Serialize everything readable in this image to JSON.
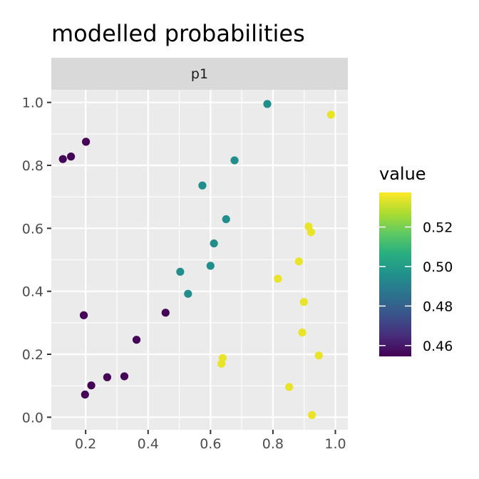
{
  "chart_data": {
    "type": "scatter",
    "title": "modelled probabilities",
    "facet_label": "p1",
    "xlabel": "",
    "ylabel": "",
    "xlim": [
      0.09,
      1.04
    ],
    "ylim": [
      -0.04,
      1.04
    ],
    "x_ticks": [
      0.2,
      0.4,
      0.6,
      0.8,
      1.0
    ],
    "x_tick_labels": [
      "0.2",
      "0.4",
      "0.6",
      "0.8",
      "1.0"
    ],
    "y_ticks": [
      0.0,
      0.2,
      0.4,
      0.6,
      0.8,
      1.0
    ],
    "y_tick_labels": [
      "0.0",
      "0.2",
      "0.4",
      "0.6",
      "0.8",
      "1.0"
    ],
    "grid": true,
    "legend": {
      "title": "value",
      "placement": "right",
      "range": [
        0.4545,
        0.5375
      ],
      "ticks": [
        0.46,
        0.48,
        0.5,
        0.52
      ],
      "tick_labels": [
        "0.46",
        "0.48",
        "0.50",
        "0.52"
      ],
      "colormap": "viridis"
    },
    "points": [
      {
        "x": 0.782,
        "y": 0.995,
        "value": 0.495
      },
      {
        "x": 0.986,
        "y": 0.961,
        "value": 0.535
      },
      {
        "x": 0.201,
        "y": 0.875,
        "value": 0.455
      },
      {
        "x": 0.153,
        "y": 0.828,
        "value": 0.455
      },
      {
        "x": 0.127,
        "y": 0.82,
        "value": 0.455
      },
      {
        "x": 0.677,
        "y": 0.816,
        "value": 0.495
      },
      {
        "x": 0.574,
        "y": 0.736,
        "value": 0.495
      },
      {
        "x": 0.65,
        "y": 0.629,
        "value": 0.495
      },
      {
        "x": 0.914,
        "y": 0.606,
        "value": 0.535
      },
      {
        "x": 0.922,
        "y": 0.588,
        "value": 0.535
      },
      {
        "x": 0.611,
        "y": 0.552,
        "value": 0.495
      },
      {
        "x": 0.883,
        "y": 0.495,
        "value": 0.535
      },
      {
        "x": 0.6,
        "y": 0.481,
        "value": 0.495
      },
      {
        "x": 0.503,
        "y": 0.462,
        "value": 0.495
      },
      {
        "x": 0.816,
        "y": 0.44,
        "value": 0.535
      },
      {
        "x": 0.528,
        "y": 0.392,
        "value": 0.495
      },
      {
        "x": 0.899,
        "y": 0.366,
        "value": 0.535
      },
      {
        "x": 0.456,
        "y": 0.332,
        "value": 0.455
      },
      {
        "x": 0.194,
        "y": 0.324,
        "value": 0.455
      },
      {
        "x": 0.894,
        "y": 0.269,
        "value": 0.535
      },
      {
        "x": 0.363,
        "y": 0.246,
        "value": 0.455
      },
      {
        "x": 0.947,
        "y": 0.196,
        "value": 0.535
      },
      {
        "x": 0.639,
        "y": 0.188,
        "value": 0.535
      },
      {
        "x": 0.635,
        "y": 0.17,
        "value": 0.535
      },
      {
        "x": 0.324,
        "y": 0.13,
        "value": 0.455
      },
      {
        "x": 0.269,
        "y": 0.127,
        "value": 0.455
      },
      {
        "x": 0.218,
        "y": 0.101,
        "value": 0.455
      },
      {
        "x": 0.852,
        "y": 0.096,
        "value": 0.535
      },
      {
        "x": 0.198,
        "y": 0.072,
        "value": 0.455
      },
      {
        "x": 0.925,
        "y": 0.007,
        "value": 0.535
      }
    ]
  }
}
